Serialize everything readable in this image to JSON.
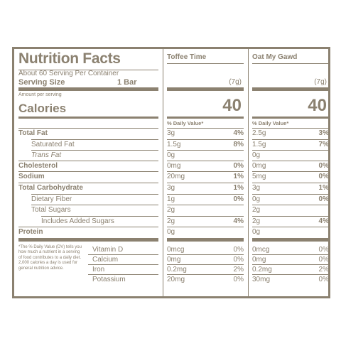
{
  "title": "Nutrition Facts",
  "servings_per_container": "About 60 Serving Per Container",
  "serving_size_label": "Serving Size",
  "serving_size_value": "1 Bar",
  "amount_per_serving": "Amount per serving",
  "calories_label": "Calories",
  "daily_value_header": "% Daily Value*",
  "footnote": "*The % Daily Value (DV) tells you how much a nutrient in a serving of food contributes to a daily diet. 2,000 calories a day is used for general nutrition advice.",
  "products": [
    {
      "name": "Toffee Time",
      "serving_weight": "(7g)",
      "calories": "40"
    },
    {
      "name": "Oat My Gawd",
      "serving_weight": "(7g)",
      "calories": "40"
    }
  ],
  "nutrients": [
    {
      "label": "Total Fat",
      "values": [
        {
          "amount": "3g",
          "dv": "4%"
        },
        {
          "amount": "2.5g",
          "dv": "3%"
        }
      ]
    },
    {
      "label": "Saturated Fat",
      "values": [
        {
          "amount": "1.5g",
          "dv": "8%"
        },
        {
          "amount": "1.5g",
          "dv": "7%"
        }
      ]
    },
    {
      "label": "Trans Fat",
      "values": [
        {
          "amount": "0g",
          "dv": ""
        },
        {
          "amount": "0g",
          "dv": ""
        }
      ]
    },
    {
      "label": "Cholesterol",
      "values": [
        {
          "amount": "0mg",
          "dv": "0%"
        },
        {
          "amount": "0mg",
          "dv": "0%"
        }
      ]
    },
    {
      "label": "Sodium",
      "values": [
        {
          "amount": "20mg",
          "dv": "1%"
        },
        {
          "amount": "5mg",
          "dv": "0%"
        }
      ]
    },
    {
      "label": "Total Carbohydrate",
      "values": [
        {
          "amount": "3g",
          "dv": "1%"
        },
        {
          "amount": "3g",
          "dv": "1%"
        }
      ]
    },
    {
      "label": "Dietary Fiber",
      "values": [
        {
          "amount": "1g",
          "dv": "0%"
        },
        {
          "amount": "0g",
          "dv": "0%"
        }
      ]
    },
    {
      "label": "Total Sugars",
      "values": [
        {
          "amount": "2g",
          "dv": ""
        },
        {
          "amount": "2g",
          "dv": ""
        }
      ]
    },
    {
      "label": "Includes Added Sugars",
      "values": [
        {
          "amount": "2g",
          "dv": "4%"
        },
        {
          "amount": "2g",
          "dv": "4%"
        }
      ]
    },
    {
      "label": "Protein",
      "values": [
        {
          "amount": "0g",
          "dv": ""
        },
        {
          "amount": "0g",
          "dv": ""
        }
      ]
    }
  ],
  "vitamins": [
    {
      "label": "Vitamin D",
      "values": [
        {
          "amount": "0mcg",
          "dv": "0%"
        },
        {
          "amount": "0mcg",
          "dv": "0%"
        }
      ]
    },
    {
      "label": "Calcium",
      "values": [
        {
          "amount": "0mg",
          "dv": "0%"
        },
        {
          "amount": "0mg",
          "dv": "0%"
        }
      ]
    },
    {
      "label": "Iron",
      "values": [
        {
          "amount": "0.2mg",
          "dv": "2%"
        },
        {
          "amount": "0.2mg",
          "dv": "2%"
        }
      ]
    },
    {
      "label": "Potassium",
      "values": [
        {
          "amount": "20mg",
          "dv": "0%"
        },
        {
          "amount": "30mg",
          "dv": "0%"
        }
      ]
    }
  ]
}
